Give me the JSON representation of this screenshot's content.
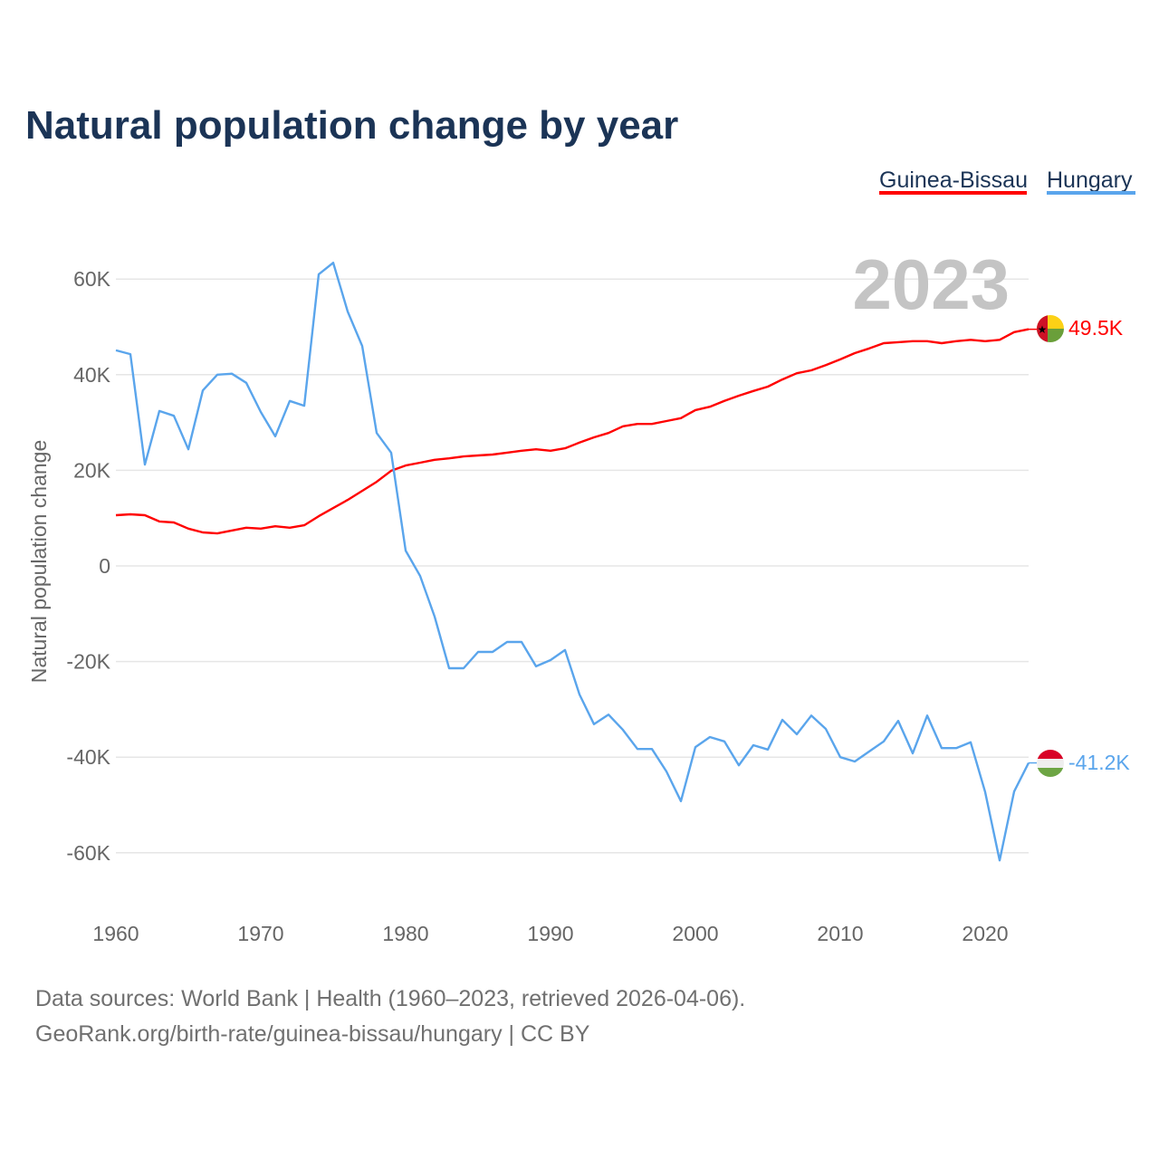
{
  "chart_data": {
    "type": "line",
    "title": "Natural population change by year",
    "xlabel": "",
    "ylabel": "Natural population change",
    "xlim": [
      1960,
      2023
    ],
    "ylim": [
      -70000,
      70000
    ],
    "x_ticks": [
      1960,
      1970,
      1980,
      1990,
      2000,
      2010,
      2020
    ],
    "x_tick_labels": [
      "1960",
      "1970",
      "1980",
      "1990",
      "2000",
      "2010",
      "2020"
    ],
    "y_ticks": [
      -60000,
      -40000,
      -20000,
      0,
      20000,
      40000,
      60000
    ],
    "y_tick_labels": [
      "-60K",
      "-40K",
      "-20K",
      "0",
      "20K",
      "40K",
      "60K"
    ],
    "grid": true,
    "legend_placement": "top-right",
    "current_year_label": "2023",
    "x_start": 1960,
    "series": [
      {
        "name": "Guinea-Bissau",
        "color": "#ff0000",
        "end_label": "49.5K",
        "flag": "guinea-bissau-flag",
        "values": [
          10600,
          10800,
          10600,
          9300,
          9100,
          7800,
          7000,
          6800,
          7400,
          8000,
          7800,
          8300,
          8000,
          8500,
          10400,
          12100,
          13800,
          15700,
          17600,
          19900,
          21000,
          21600,
          22200,
          22500,
          22900,
          23100,
          23300,
          23700,
          24100,
          24400,
          24100,
          24600,
          25800,
          26900,
          27800,
          29200,
          29700,
          29700,
          30300,
          30900,
          32600,
          33300,
          34500,
          35600,
          36600,
          37500,
          39000,
          40300,
          40900,
          42000,
          43200,
          44500,
          45500,
          46600,
          46800,
          47000,
          47000,
          46600,
          47000,
          47300,
          47000,
          47300,
          48900,
          49500
        ]
      },
      {
        "name": "Hungary",
        "color": "#5aa5ec",
        "end_label": "-41.2K",
        "flag": "hungary-flag",
        "values": [
          45100,
          44300,
          21200,
          32400,
          31400,
          24400,
          36700,
          40000,
          40200,
          38300,
          32200,
          27100,
          34500,
          33500,
          61000,
          63400,
          53200,
          46000,
          27800,
          23700,
          3200,
          -2100,
          -10600,
          -21400,
          -21400,
          -18000,
          -18000,
          -15900,
          -15900,
          -21000,
          -19700,
          -17600,
          -26900,
          -33100,
          -31100,
          -34300,
          -38300,
          -38300,
          -43000,
          -49200,
          -37900,
          -35800,
          -36700,
          -41700,
          -37500,
          -38400,
          -32200,
          -35200,
          -31300,
          -34100,
          -40000,
          -40900,
          -38800,
          -36700,
          -32400,
          -39200,
          -31300,
          -38100,
          -38100,
          -36900,
          -47300,
          -61600,
          -47200,
          -41200
        ]
      }
    ]
  },
  "footer": {
    "line1": "Data sources: World Bank | Health (1960–2023, retrieved 2026-04-06).",
    "line2": "GeoRank.org/birth-rate/guinea-bissau/hungary | CC BY"
  }
}
